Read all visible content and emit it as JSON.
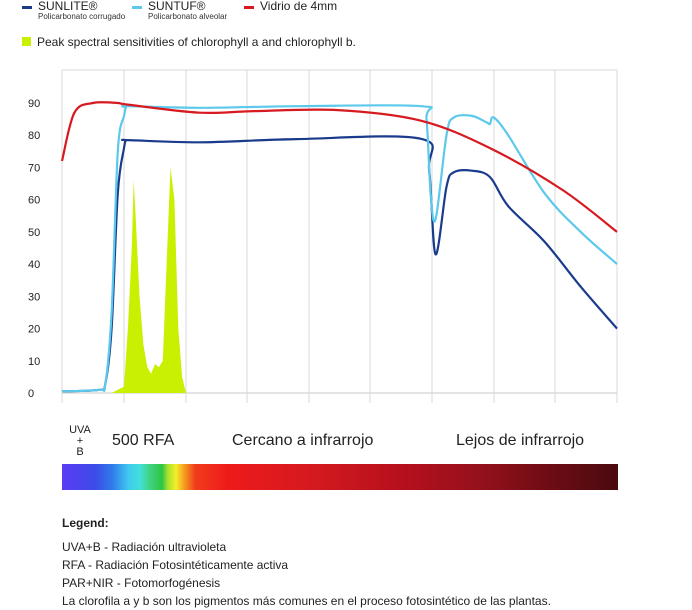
{
  "legend": {
    "items": [
      {
        "name": "SUNLITE®",
        "sub": "Policarbonato corrugado",
        "color": "#1a3a8c"
      },
      {
        "name": "SUNTUF®",
        "sub": "Policarbonato alveolar",
        "color": "#5cc9ec"
      },
      {
        "name": "Vidrio de 4mm",
        "sub": "",
        "color": "#d71920"
      }
    ],
    "peak_label": "Peak spectral sensitivities of chlorophyll a and chlorophyll b.",
    "peak_color": "#c8f000"
  },
  "chart_data": {
    "type": "line",
    "title": "",
    "xlabel": "",
    "ylabel": "",
    "ylim": [
      0,
      95
    ],
    "yticks": [
      0,
      10,
      20,
      30,
      40,
      50,
      60,
      70,
      80,
      90
    ],
    "grid": "vertical lines only",
    "x_unit": "nm (approximate, read from band positions)",
    "series": [
      {
        "name": "SUNLITE®",
        "color": "#1a3a8c",
        "x": [
          280,
          340,
          350,
          360,
          370,
          380,
          390,
          400,
          800,
          1500,
          2400,
          2460,
          2500,
          2560,
          2600,
          2700,
          2800,
          2900,
          3100,
          3300,
          3500
        ],
        "y": [
          0.5,
          1,
          3,
          20,
          62,
          76,
          78.3,
          78.5,
          77.8,
          78.8,
          78.9,
          69,
          43,
          64,
          68.5,
          69,
          67,
          58,
          47,
          33,
          20
        ]
      },
      {
        "name": "SUNTUF®",
        "color": "#5cc9ec",
        "x": [
          280,
          340,
          350,
          360,
          370,
          380,
          390,
          400,
          800,
          1500,
          2400,
          2440,
          2470,
          2500,
          2560,
          2600,
          2700,
          2780,
          2800,
          2820,
          2900,
          3100,
          3300,
          3500
        ],
        "y": [
          0.5,
          1,
          3,
          25,
          75,
          86,
          88.5,
          89,
          88.5,
          89,
          89,
          85,
          62,
          54,
          80,
          85.5,
          86,
          84,
          83.5,
          85.5,
          80,
          62,
          50,
          40
        ]
      },
      {
        "name": "Vidrio de 4mm",
        "color": "#d71920",
        "x": [
          280,
          300,
          330,
          370,
          400,
          800,
          1200,
          1800,
          2400,
          2800,
          3200,
          3500
        ],
        "y": [
          72,
          87,
          90,
          90,
          89.5,
          87,
          87.5,
          87.8,
          84.5,
          76,
          63,
          50
        ]
      },
      {
        "name": "Peak spectral sensitivities of chlorophyll a and chlorophyll b.",
        "color": "#c8f000",
        "type": "area",
        "x": [
          360,
          380,
          400,
          420,
          430,
          440,
          460,
          480,
          500,
          520,
          540,
          560,
          580,
          600,
          620,
          640,
          660,
          680,
          700,
          720,
          740
        ],
        "y": [
          0,
          2,
          20,
          45,
          66,
          55,
          30,
          15,
          8,
          6,
          9,
          8,
          10,
          40,
          70,
          60,
          20,
          5,
          0,
          0,
          0
        ]
      }
    ],
    "bands": [
      {
        "label_lines": [
          "UVA",
          "+",
          "B"
        ]
      },
      {
        "label": "500 RFA"
      },
      {
        "label": "Cercano a infrarrojo"
      },
      {
        "label": "Lejos de infrarrojo"
      }
    ]
  },
  "notes": {
    "title": "Legend:",
    "lines": [
      "UVA+B - Radiación ultravioleta",
      "RFA - Radiación Fotosintéticamente activa",
      "PAR+NIR -  Fotomorfogénesis",
      "La clorofila a y b son los pigmentos más comunes en el proceso fotosintético de las plantas."
    ]
  }
}
